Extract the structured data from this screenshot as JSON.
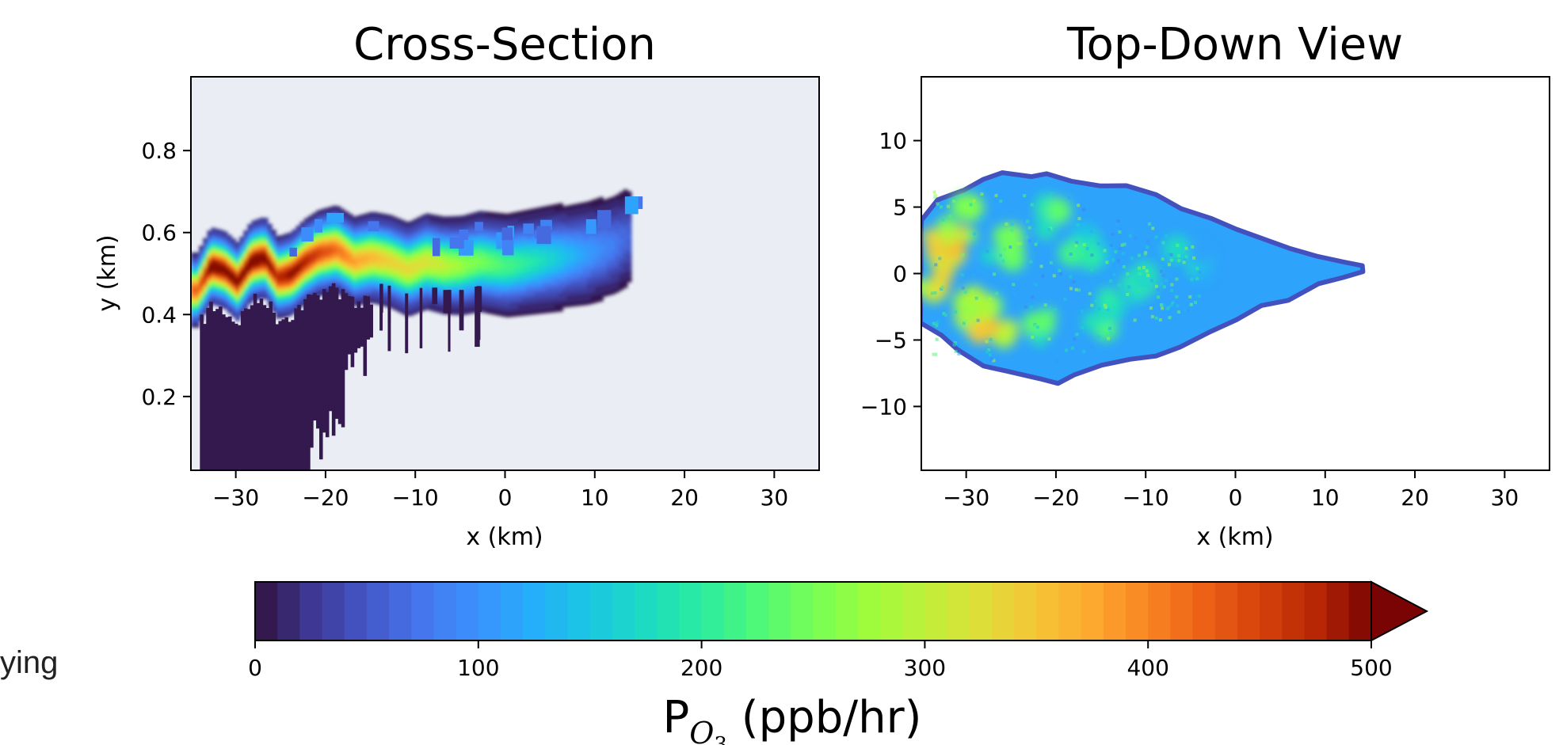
{
  "edge_text": "ying",
  "chart_data": [
    {
      "type": "heatmap",
      "title": "Cross-Section",
      "xlabel": "x (km)",
      "ylabel": "y (km)",
      "xlim": [
        -35,
        35
      ],
      "ylim": [
        0.02,
        0.98
      ],
      "xticks": [
        -30,
        -20,
        -10,
        0,
        10,
        20,
        30
      ],
      "xtick_labels": [
        "−30",
        "−20",
        "−10",
        "0",
        "10",
        "20",
        "30"
      ],
      "yticks": [
        0.2,
        0.4,
        0.6,
        0.8
      ],
      "ytick_labels": [
        "0.2",
        "0.4",
        "0.6",
        "0.8"
      ],
      "background": "#eaeef4",
      "plume_core": {
        "description_units": "km",
        "center_y": [
          [
            -34.5,
            0.46
          ],
          [
            -33,
            0.52
          ],
          [
            -31.5,
            0.51
          ],
          [
            -30,
            0.48
          ],
          [
            -28.5,
            0.53
          ],
          [
            -27,
            0.54
          ],
          [
            -25.5,
            0.49
          ],
          [
            -24,
            0.5
          ],
          [
            -22.5,
            0.53
          ],
          [
            -21,
            0.55
          ],
          [
            -19,
            0.56
          ],
          [
            -17,
            0.53
          ],
          [
            -15,
            0.54
          ],
          [
            -13,
            0.53
          ],
          [
            -11,
            0.51
          ],
          [
            -9,
            0.53
          ],
          [
            -7,
            0.52
          ],
          [
            -5,
            0.52
          ],
          [
            -3,
            0.53
          ],
          [
            0,
            0.52
          ],
          [
            3,
            0.53
          ],
          [
            6,
            0.54
          ],
          [
            9,
            0.55
          ],
          [
            12,
            0.57
          ],
          [
            13.5,
            0.59
          ]
        ],
        "peak_ppb_hr": [
          [
            -34.5,
            420
          ],
          [
            -33,
            520
          ],
          [
            -31.5,
            510
          ],
          [
            -30,
            500
          ],
          [
            -28.5,
            520
          ],
          [
            -27,
            510
          ],
          [
            -25.5,
            470
          ],
          [
            -24,
            500
          ],
          [
            -22.5,
            480
          ],
          [
            -21,
            450
          ],
          [
            -19,
            420
          ],
          [
            -17,
            380
          ],
          [
            -15,
            360
          ],
          [
            -13,
            340
          ],
          [
            -11,
            330
          ],
          [
            -9,
            320
          ],
          [
            -7,
            300
          ],
          [
            -5,
            270
          ],
          [
            -3,
            250
          ],
          [
            0,
            220
          ],
          [
            3,
            190
          ],
          [
            6,
            150
          ],
          [
            9,
            110
          ],
          [
            12,
            80
          ],
          [
            13.5,
            60
          ]
        ]
      },
      "surface_region": {
        "x_range": [
          -34,
          -15
        ],
        "y_range": [
          0.02,
          0.42
        ],
        "value_ppb_hr": 0
      }
    },
    {
      "type": "heatmap",
      "title": "Top-Down View",
      "xlabel": "x (km)",
      "ylabel": "",
      "xlim": [
        -35,
        35
      ],
      "ylim": [
        -14.8,
        14.8
      ],
      "xticks": [
        -30,
        -20,
        -10,
        0,
        10,
        20,
        30
      ],
      "xtick_labels": [
        "−30",
        "−20",
        "−10",
        "0",
        "10",
        "20",
        "30"
      ],
      "yticks": [
        -10,
        -5,
        0,
        5,
        10
      ],
      "ytick_labels": [
        "−10",
        "−5",
        "0",
        "5",
        "10"
      ],
      "background": "#ffffff",
      "plume_outline_km": [
        [
          -35,
          4.2
        ],
        [
          -33,
          5.5
        ],
        [
          -30,
          6.5
        ],
        [
          -28,
          7.0
        ],
        [
          -26,
          7.6
        ],
        [
          -23,
          7.5
        ],
        [
          -21,
          7.6
        ],
        [
          -18,
          7.2
        ],
        [
          -15,
          6.8
        ],
        [
          -12,
          6.4
        ],
        [
          -9,
          5.8
        ],
        [
          -6,
          4.7
        ],
        [
          -3,
          4.0
        ],
        [
          0,
          3.3
        ],
        [
          3,
          2.7
        ],
        [
          6,
          1.9
        ],
        [
          9,
          1.2
        ],
        [
          12,
          0.8
        ],
        [
          14,
          0.4
        ],
        [
          14,
          -0.1
        ],
        [
          12,
          -0.3
        ],
        [
          9,
          -1.0
        ],
        [
          6,
          -1.8
        ],
        [
          3,
          -2.6
        ],
        [
          0,
          -3.6
        ],
        [
          -3,
          -4.5
        ],
        [
          -6,
          -5.4
        ],
        [
          -9,
          -6.0
        ],
        [
          -12,
          -6.6
        ],
        [
          -15,
          -7.0
        ],
        [
          -18,
          -7.6
        ],
        [
          -20,
          -8.3
        ],
        [
          -22,
          -7.8
        ],
        [
          -25,
          -7.4
        ],
        [
          -28,
          -6.8
        ],
        [
          -31,
          -5.6
        ],
        [
          -33,
          -4.8
        ],
        [
          -35,
          -3.8
        ]
      ],
      "hotspots_km": [
        {
          "x": -34,
          "y": 0.0,
          "value": 330
        },
        {
          "x": -32.5,
          "y": 2.5,
          "value": 360
        },
        {
          "x": -31,
          "y": 4.0,
          "value": 320
        },
        {
          "x": -30,
          "y": -3.0,
          "value": 300
        },
        {
          "x": -27,
          "y": -3.5,
          "value": 340
        },
        {
          "x": -26,
          "y": 2.0,
          "value": 240
        },
        {
          "x": -22,
          "y": -4.0,
          "value": 250
        },
        {
          "x": -20,
          "y": 4.5,
          "value": 230
        },
        {
          "x": -17,
          "y": 2.0,
          "value": 200
        },
        {
          "x": -15,
          "y": -3.0,
          "value": 210
        },
        {
          "x": -10,
          "y": -1.0,
          "value": 190
        },
        {
          "x": -5,
          "y": 1.0,
          "value": 170
        }
      ],
      "plume_base_value": 110
    }
  ],
  "colorbar": {
    "label": "P",
    "label_sub": "O",
    "label_subsub": "3",
    "label_units": " (ppb/hr)",
    "min": 0,
    "max": 500,
    "levels": 50,
    "extend": "max",
    "colormap": "turbo",
    "ticks": [
      0,
      100,
      200,
      300,
      400,
      500
    ],
    "tick_labels": [
      "0",
      "100",
      "200",
      "300",
      "400",
      "500"
    ]
  }
}
